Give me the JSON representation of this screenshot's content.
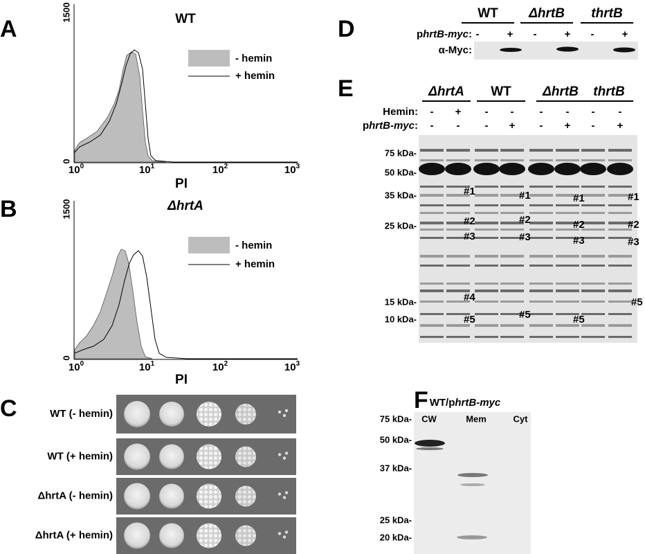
{
  "panels": {
    "A": {
      "label": "A",
      "title": "WT",
      "yticks": [
        "1500",
        "0"
      ],
      "xticks": [
        {
          "base": "10",
          "exp": "0"
        },
        {
          "base": "10",
          "exp": "1"
        },
        {
          "base": "10",
          "exp": "2"
        },
        {
          "base": "10",
          "exp": "3"
        }
      ],
      "xlabel": "PI",
      "legend": [
        "- hemin",
        "+ hemin"
      ]
    },
    "B": {
      "label": "B",
      "title": "ΔhrtA",
      "yticks": [
        "1500",
        "0"
      ],
      "xticks": [
        {
          "base": "10",
          "exp": "0"
        },
        {
          "base": "10",
          "exp": "1"
        },
        {
          "base": "10",
          "exp": "2"
        },
        {
          "base": "10",
          "exp": "3"
        }
      ],
      "xlabel": "PI",
      "legend": [
        "- hemin",
        "+ hemin"
      ]
    },
    "C": {
      "label": "C",
      "rows": [
        "WT (- hemin)",
        "WT (+ hemin)",
        "ΔhrtA (- hemin)",
        "ΔhrtA (+ hemin)"
      ]
    },
    "D": {
      "label": "D",
      "strains": [
        "WT",
        "ΔhrtB",
        "thrtB"
      ],
      "plasmid_prefix": "p",
      "plasmid_name": "hrtB-myc",
      "plasmid_suffix": ":",
      "signs": [
        "-",
        "+",
        "-",
        "+",
        "-",
        "+"
      ],
      "blot": "α-Myc:"
    },
    "E": {
      "label": "E",
      "strains": [
        "ΔhrtA",
        "WT",
        "ΔhrtB",
        "thrtB"
      ],
      "hemin": "Hemin:",
      "hemin_signs": [
        "-",
        "+",
        "-",
        "-",
        "-",
        "-",
        "-",
        "-"
      ],
      "plasmid_prefix": "p",
      "plasmid_name": "hrtB-myc",
      "plasmid_suffix": ":",
      "plasmid_signs": [
        "-",
        "-",
        "-",
        "+",
        "-",
        "+",
        "-",
        "+"
      ],
      "markers": [
        "75 kDa-",
        "50 kDa-",
        "35 kDa-",
        "25 kDa-",
        "15 kDa-",
        "10 kDa-"
      ],
      "bands": [
        "#1",
        "#2",
        "#3",
        "#4",
        "#5",
        "#1",
        "#2",
        "#3",
        "#5",
        "#1",
        "#2",
        "#3",
        "#5",
        "#1",
        "#2",
        "#3",
        "#5"
      ]
    },
    "F": {
      "label": "F",
      "title_prefix": "WT/p",
      "title_name": "hrtB-myc",
      "lanes": [
        "CW",
        "Mem",
        "Cyt"
      ],
      "markers": [
        "75 kDa-",
        "50 kDa-",
        "37 kDa-",
        "25 kDa-",
        "20 kDa-"
      ]
    }
  }
}
